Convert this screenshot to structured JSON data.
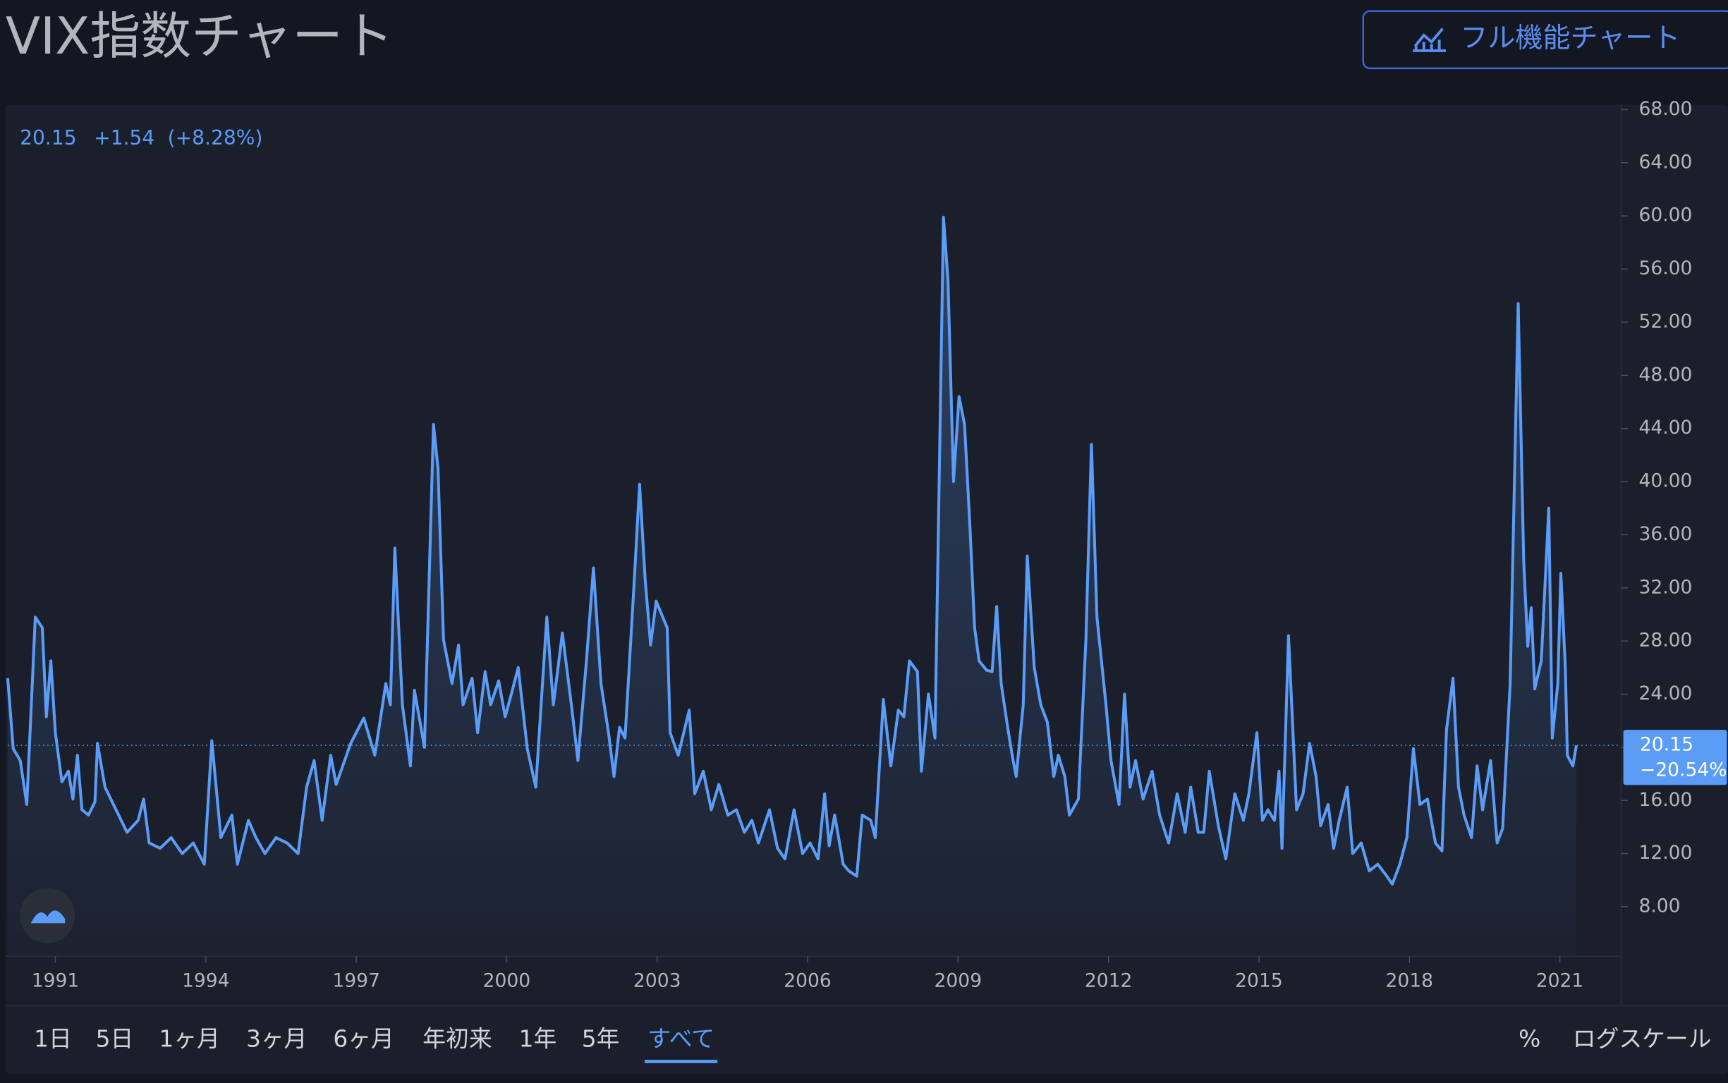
{
  "header": {
    "title": "VIX指数チャート",
    "button": "フル機能チャート"
  },
  "quote": {
    "last": "20.15",
    "change": "+1.54",
    "change_pct": "(+8.28%)"
  },
  "chart_data": {
    "type": "line",
    "color": "#5b9cf6",
    "x": [
      1990.05,
      1990.16,
      1990.3,
      1990.43,
      1990.6,
      1990.74,
      1990.82,
      1990.91,
      1991.0,
      1991.13,
      1991.26,
      1991.35,
      1991.44,
      1991.53,
      1991.66,
      1991.79,
      1991.84,
      1991.99,
      1992.21,
      1992.43,
      1992.65,
      1992.76,
      1992.87,
      1993.09,
      1993.31,
      1993.53,
      1993.75,
      1993.97,
      1994.12,
      1994.3,
      1994.52,
      1994.63,
      1994.85,
      1995.0,
      1995.18,
      1995.4,
      1995.62,
      1995.84,
      1996.01,
      1996.16,
      1996.32,
      1996.49,
      1996.6,
      1996.89,
      1997.15,
      1997.37,
      1997.59,
      1997.68,
      1997.77,
      1997.92,
      1998.08,
      1998.16,
      1998.36,
      1998.54,
      1998.63,
      1998.74,
      1998.91,
      1999.04,
      1999.13,
      1999.31,
      1999.42,
      1999.57,
      1999.68,
      1999.84,
      1999.97,
      2000.12,
      2000.23,
      2000.41,
      2000.58,
      2000.8,
      2000.93,
      2001.11,
      2001.29,
      2001.42,
      2001.59,
      2001.73,
      2001.88,
      2002.03,
      2002.14,
      2002.25,
      2002.36,
      2002.54,
      2002.65,
      2002.76,
      2002.87,
      2002.98,
      2003.2,
      2003.26,
      2003.42,
      2003.64,
      2003.75,
      2003.92,
      2004.08,
      2004.23,
      2004.41,
      2004.58,
      2004.74,
      2004.89,
      2005.02,
      2005.24,
      2005.4,
      2005.55,
      2005.73,
      2005.9,
      2006.05,
      2006.21,
      2006.34,
      2006.43,
      2006.54,
      2006.71,
      2006.82,
      2006.98,
      2007.09,
      2007.26,
      2007.35,
      2007.51,
      2007.66,
      2007.81,
      2007.92,
      2008.03,
      2008.19,
      2008.27,
      2008.41,
      2008.54,
      2008.71,
      2008.8,
      2008.91,
      2009.02,
      2009.13,
      2009.24,
      2009.33,
      2009.42,
      2009.57,
      2009.68,
      2009.77,
      2009.86,
      2009.99,
      2010.08,
      2010.16,
      2010.3,
      2010.38,
      2010.52,
      2010.65,
      2010.78,
      2010.91,
      2011.0,
      2011.13,
      2011.22,
      2011.4,
      2011.55,
      2011.66,
      2011.77,
      2011.95,
      2012.05,
      2012.21,
      2012.32,
      2012.43,
      2012.54,
      2012.69,
      2012.87,
      2013.02,
      2013.2,
      2013.37,
      2013.53,
      2013.64,
      2013.79,
      2013.9,
      2014.01,
      2014.19,
      2014.34,
      2014.52,
      2014.69,
      2014.8,
      2014.96,
      2015.07,
      2015.18,
      2015.31,
      2015.4,
      2015.46,
      2015.59,
      2015.75,
      2015.88,
      2016.01,
      2016.14,
      2016.23,
      2016.38,
      2016.49,
      2016.6,
      2016.76,
      2016.87,
      2017.04,
      2017.2,
      2017.37,
      2017.55,
      2017.66,
      2017.81,
      2017.95,
      2018.08,
      2018.21,
      2018.36,
      2018.52,
      2018.65,
      2018.74,
      2018.87,
      2018.98,
      2019.09,
      2019.24,
      2019.35,
      2019.46,
      2019.62,
      2019.75,
      2019.86,
      2020.01,
      2020.17,
      2020.28,
      2020.36,
      2020.43,
      2020.5,
      2020.63,
      2020.78,
      2020.85,
      2020.96,
      2021.02,
      2021.11,
      2021.15,
      2021.26,
      2021.33
    ],
    "values": [
      25.2,
      19.9,
      19.0,
      15.7,
      29.8,
      29.0,
      22.3,
      26.5,
      21.1,
      17.4,
      18.2,
      16.1,
      19.4,
      15.3,
      14.9,
      15.9,
      20.3,
      17.0,
      15.3,
      13.6,
      14.5,
      16.1,
      12.8,
      12.4,
      13.2,
      12.0,
      12.8,
      11.2,
      20.5,
      13.2,
      14.9,
      11.2,
      14.5,
      13.2,
      12.0,
      13.2,
      12.8,
      12.0,
      17.0,
      19.0,
      14.5,
      19.4,
      17.2,
      20.3,
      22.2,
      19.4,
      24.8,
      23.2,
      35.0,
      23.2,
      18.6,
      24.3,
      20.0,
      44.3,
      41.0,
      28.1,
      24.8,
      27.7,
      23.2,
      25.2,
      21.1,
      25.7,
      23.2,
      25.0,
      22.3,
      24.4,
      26.0,
      19.9,
      17.0,
      29.8,
      23.2,
      28.6,
      23.2,
      19.0,
      26.5,
      33.5,
      24.8,
      21.1,
      17.8,
      21.5,
      20.7,
      32.3,
      39.8,
      32.7,
      27.7,
      31.0,
      29.0,
      21.1,
      19.4,
      22.8,
      16.5,
      18.2,
      15.3,
      17.2,
      14.9,
      15.3,
      13.6,
      14.5,
      12.8,
      15.3,
      12.4,
      11.6,
      15.3,
      12.0,
      12.8,
      11.6,
      16.5,
      12.6,
      14.9,
      11.2,
      10.7,
      10.3,
      14.9,
      14.5,
      13.2,
      23.6,
      18.6,
      22.8,
      22.3,
      26.5,
      25.7,
      18.2,
      24.0,
      20.7,
      59.9,
      55.1,
      40.0,
      46.4,
      44.3,
      36.4,
      29.0,
      26.5,
      25.8,
      25.7,
      30.6,
      24.8,
      21.5,
      19.4,
      17.8,
      23.2,
      34.4,
      26.0,
      23.2,
      21.9,
      17.8,
      19.4,
      17.8,
      14.9,
      16.1,
      28.1,
      42.8,
      29.8,
      23.2,
      19.0,
      15.7,
      24.0,
      17.0,
      19.0,
      16.1,
      18.2,
      14.9,
      12.8,
      16.5,
      13.6,
      17.0,
      13.6,
      13.6,
      18.2,
      14.1,
      11.6,
      16.5,
      14.5,
      16.5,
      21.1,
      14.5,
      15.3,
      14.5,
      18.2,
      12.4,
      28.4,
      15.3,
      16.5,
      20.3,
      17.8,
      14.1,
      15.7,
      12.4,
      14.5,
      17.0,
      12.0,
      12.8,
      10.7,
      11.2,
      10.3,
      9.7,
      11.2,
      13.2,
      19.9,
      15.7,
      16.1,
      12.8,
      12.2,
      21.3,
      25.2,
      17.0,
      14.9,
      13.2,
      18.6,
      15.3,
      19.0,
      12.8,
      13.9,
      24.8,
      53.4,
      34.0,
      27.6,
      30.5,
      24.4,
      26.5,
      38.0,
      20.7,
      24.8,
      33.1,
      26.0,
      19.4,
      18.6,
      20.15
    ],
    "xlim": [
      1990.05,
      2022.2
    ],
    "ylim": [
      4.27,
      68.37
    ],
    "xticks": [
      1991,
      1994,
      1997,
      2000,
      2003,
      2006,
      2009,
      2012,
      2015,
      2018,
      2021
    ],
    "yticks": [
      {
        "value": 8,
        "label": "8.00"
      },
      {
        "value": 12,
        "label": "12.00"
      },
      {
        "value": 16,
        "label": "16.00"
      },
      {
        "value": 20,
        "label": "20.00"
      },
      {
        "value": 24,
        "label": "24.00"
      },
      {
        "value": 28,
        "label": "28.00"
      },
      {
        "value": 32,
        "label": "32.00"
      },
      {
        "value": 36,
        "label": "36.00"
      },
      {
        "value": 40,
        "label": "40.00"
      },
      {
        "value": 44,
        "label": "44.00"
      },
      {
        "value": 48,
        "label": "48.00"
      },
      {
        "value": 52,
        "label": "52.00"
      },
      {
        "value": 56,
        "label": "56.00"
      },
      {
        "value": 60,
        "label": "60.00"
      },
      {
        "value": 64,
        "label": "64.00"
      },
      {
        "value": 68,
        "label": "68.00"
      }
    ],
    "price_tag": {
      "price": 20.15,
      "change": "−20.54%"
    }
  },
  "toolbar": {
    "ranges": [
      "1日",
      "5日",
      "1ヶ月",
      "3ヶ月",
      "6ヶ月",
      "年初来",
      "1年",
      "5年",
      "すべて"
    ],
    "selected": "すべて",
    "options": [
      "%",
      "ログスケール"
    ]
  }
}
